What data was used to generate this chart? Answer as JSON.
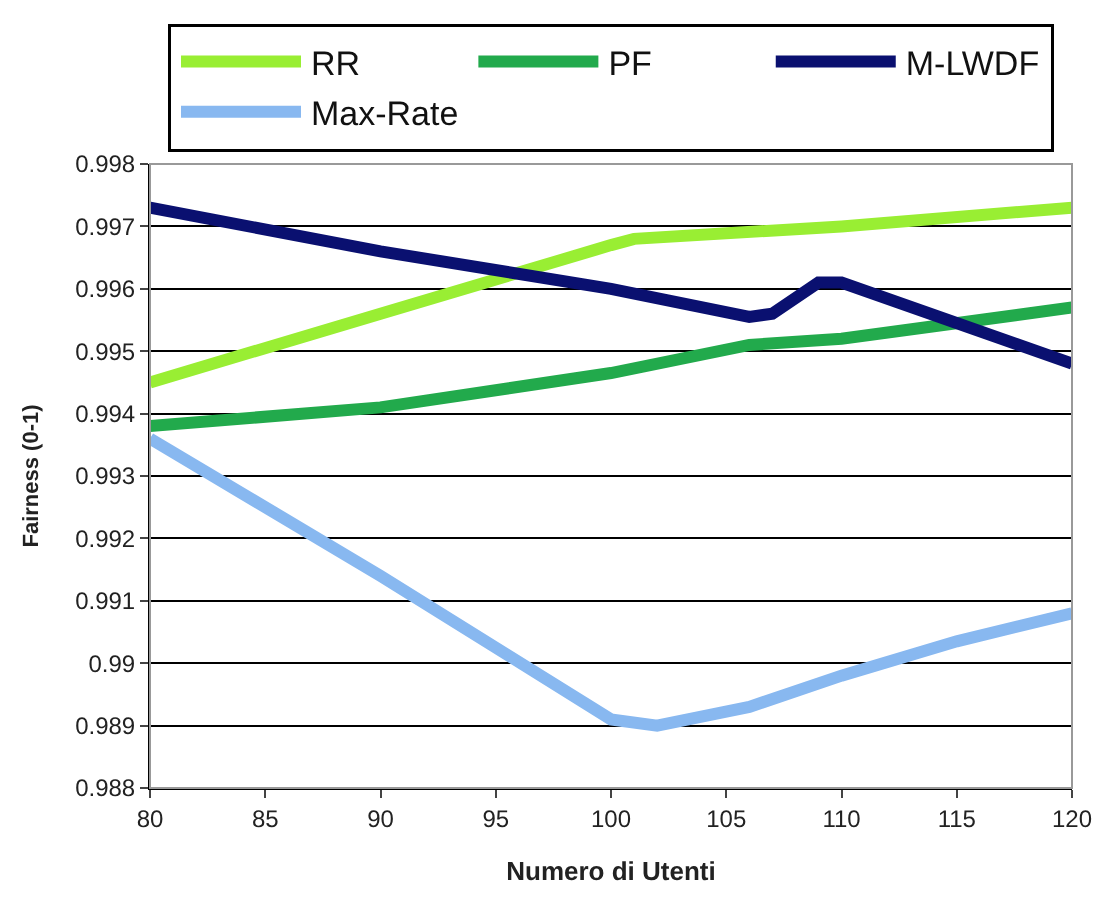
{
  "chart_data": {
    "type": "line",
    "xlabel": "Numero di Utenti",
    "ylabel": "Fairness (0-1)",
    "xlim": [
      80,
      120
    ],
    "xticks": [
      80,
      85,
      90,
      95,
      100,
      105,
      110,
      115,
      120
    ],
    "ylim": [
      0.988,
      0.998
    ],
    "yticks": [
      0.988,
      0.989,
      0.99,
      0.991,
      0.992,
      0.993,
      0.994,
      0.995,
      0.996,
      0.997,
      0.998
    ],
    "grid": "y",
    "legend": "top",
    "marker": "none",
    "line_style": "solid",
    "series": [
      {
        "name": "RR",
        "color": "#99ee33",
        "x": [
          80,
          90,
          100,
          101,
          110,
          120
        ],
        "values": [
          0.9945,
          0.9956,
          0.9967,
          0.9968,
          0.997,
          0.9973
        ]
      },
      {
        "name": "PF",
        "color": "#22aa4c",
        "x": [
          80,
          90,
          100,
          106,
          110,
          120
        ],
        "values": [
          0.9938,
          0.9941,
          0.99465,
          0.9951,
          0.9952,
          0.9957
        ]
      },
      {
        "name": "M-LWDF",
        "color": "#0a1070",
        "x": [
          80,
          90,
          100,
          106,
          107,
          109,
          110,
          120
        ],
        "values": [
          0.9973,
          0.9966,
          0.996,
          0.99555,
          0.9956,
          0.9961,
          0.9961,
          0.9948
        ]
      },
      {
        "name": "Max-Rate",
        "color": "#88b8f0",
        "x": [
          80,
          90,
          100,
          102,
          106,
          110,
          115,
          120
        ],
        "values": [
          0.9936,
          0.9914,
          0.9891,
          0.989,
          0.9893,
          0.9898,
          0.99035,
          0.9908
        ]
      }
    ]
  }
}
